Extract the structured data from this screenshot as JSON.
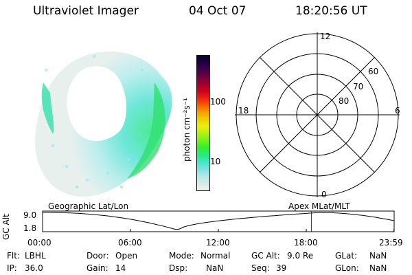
{
  "header": {
    "instrument": "Ultraviolet Imager",
    "date": "04 Oct 07",
    "time": "18:20:56 UT"
  },
  "colorbar": {
    "unit_label": "photon cm⁻²s⁻¹",
    "tick_100": "100",
    "tick_10": "10",
    "colors": [
      "#f0f0f0",
      "#d8e8e4",
      "#b4eaea",
      "#7ee0e0",
      "#40e8c8",
      "#28e880",
      "#30f030",
      "#70f020",
      "#b0f010",
      "#e8f010",
      "#f0d000",
      "#f8a000",
      "#f86000",
      "#f02010",
      "#d00020",
      "#a00030",
      "#700040",
      "#400050",
      "#200040",
      "#100030"
    ]
  },
  "polar": {
    "mlt_12": "12",
    "mlt_18": "18",
    "mlt_6": "6",
    "mlt_0": "0",
    "lat_60": "60",
    "lat_70": "70",
    "lat_80": "80"
  },
  "timeline": {
    "axis_label": "GC Alt",
    "y_max": "9.0",
    "y_min": "1.8",
    "left_caption": "Geographic Lat/Lon",
    "right_caption": "Apex  MLat/MLT",
    "ticks": [
      "00:00",
      "06:00",
      "12:00",
      "18:00",
      "23:59"
    ],
    "marker_time_hours": 18.35,
    "marker_color": "#c00000"
  },
  "footer": {
    "flt_label": "Flt:",
    "flt_value": "LBHL",
    "ip_label": "IP:",
    "ip_value": "36.0",
    "door_label": "Door:",
    "door_value": "Open",
    "gain_label": "Gain:",
    "gain_value": "14",
    "mode_label": "Mode:",
    "mode_value": "Normal",
    "dsp_label": "Dsp:",
    "dsp_value": "NaN",
    "gcalt_label": "GC Alt:",
    "gcalt_value": "9.0 Re",
    "seq_label": "Seq:",
    "seq_value": "39",
    "glat_label": "GLat:",
    "glat_value": "NaN",
    "glon_label": "GLon:",
    "glon_value": "NaN"
  }
}
